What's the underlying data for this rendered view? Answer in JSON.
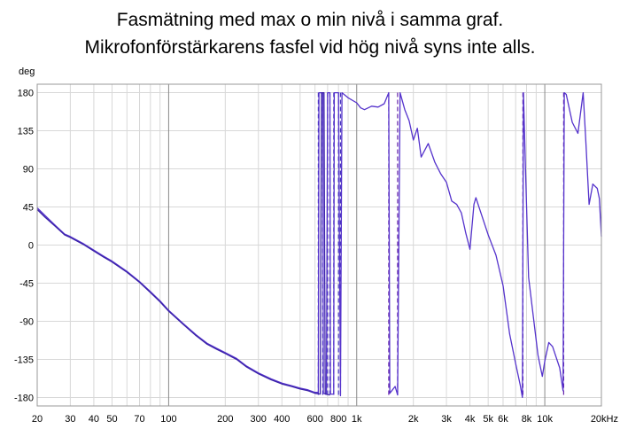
{
  "titles": [
    "Fasmätning med max o min nivå i samma graf.",
    "Mikrofonförstärkarens fasfel vid hög nivå syns inte alls."
  ],
  "chart_data": {
    "type": "line",
    "title": "Fasmätning med max o min nivå i samma graf.",
    "subtitle": "Mikrofonförstärkarens fasfel vid hög nivå syns inte alls.",
    "ylabel": "deg",
    "xlabel": "",
    "x_scale": "log",
    "xlim": [
      20,
      20000
    ],
    "ylim": [
      -190,
      190
    ],
    "grid": true,
    "yticks": [
      180,
      135,
      90,
      45,
      0,
      -45,
      -90,
      -135,
      -180
    ],
    "ytick_labels": [
      "180",
      "135",
      "90",
      "45",
      "0",
      "-45",
      "-90",
      "-135",
      "-180"
    ],
    "xticks": [
      20,
      30,
      40,
      50,
      70,
      100,
      200,
      300,
      400,
      600,
      800,
      1000,
      2000,
      3000,
      4000,
      5000,
      6000,
      8000,
      10000,
      20000
    ],
    "xtick_labels": [
      "20",
      "30",
      "40",
      "50",
      "70",
      "100",
      "200",
      "300",
      "400",
      "600",
      "800",
      "1k",
      "2k",
      "3k",
      "4k",
      "5k",
      "6k",
      "8k",
      "10k",
      "20kHz"
    ],
    "series": [
      {
        "color": "#5533cc",
        "points": [
          [
            20,
            44
          ],
          [
            22,
            35
          ],
          [
            25,
            23
          ],
          [
            28,
            13
          ],
          [
            30,
            10
          ],
          [
            35,
            2
          ],
          [
            40,
            -6
          ],
          [
            45,
            -13
          ],
          [
            50,
            -19
          ],
          [
            60,
            -31
          ],
          [
            70,
            -43
          ],
          [
            80,
            -55
          ],
          [
            90,
            -66
          ],
          [
            100,
            -77
          ],
          [
            120,
            -93
          ],
          [
            140,
            -106
          ],
          [
            160,
            -116
          ],
          [
            180,
            -122
          ],
          [
            200,
            -127
          ],
          [
            230,
            -134
          ],
          [
            260,
            -143
          ],
          [
            300,
            -151
          ],
          [
            350,
            -158
          ],
          [
            400,
            -163
          ],
          [
            450,
            -166
          ],
          [
            500,
            -169
          ],
          [
            550,
            -171
          ],
          [
            600,
            -174
          ],
          [
            625,
            -174
          ],
          [
            630,
            180
          ],
          [
            660,
            180
          ],
          [
            665,
            -175
          ],
          [
            690,
            -176
          ],
          [
            700,
            180
          ],
          [
            720,
            180
          ],
          [
            725,
            -176
          ],
          [
            755,
            -176
          ],
          [
            760,
            180
          ],
          [
            790,
            180
          ],
          [
            800,
            180
          ],
          [
            820,
            -178
          ],
          [
            835,
            180
          ],
          [
            900,
            174
          ],
          [
            1000,
            168
          ],
          [
            1050,
            162
          ],
          [
            1100,
            160
          ],
          [
            1200,
            164
          ],
          [
            1300,
            163
          ],
          [
            1400,
            167
          ],
          [
            1480,
            180
          ],
          [
            1500,
            -175
          ],
          [
            1600,
            -167
          ],
          [
            1650,
            -177
          ],
          [
            1700,
            180
          ],
          [
            1800,
            160
          ],
          [
            1900,
            147
          ],
          [
            2000,
            124
          ],
          [
            2100,
            138
          ],
          [
            2200,
            104
          ],
          [
            2400,
            120
          ],
          [
            2600,
            98
          ],
          [
            2800,
            84
          ],
          [
            3000,
            74
          ],
          [
            3200,
            52
          ],
          [
            3400,
            48
          ],
          [
            3600,
            38
          ],
          [
            3800,
            14
          ],
          [
            4000,
            -5
          ],
          [
            4200,
            48
          ],
          [
            4300,
            56
          ],
          [
            4500,
            43
          ],
          [
            5000,
            12
          ],
          [
            5500,
            -12
          ],
          [
            6000,
            -48
          ],
          [
            6500,
            -105
          ],
          [
            7000,
            -140
          ],
          [
            7400,
            -165
          ],
          [
            7600,
            -180
          ],
          [
            7700,
            180
          ],
          [
            7900,
            90
          ],
          [
            8200,
            -38
          ],
          [
            8700,
            -85
          ],
          [
            9200,
            -130
          ],
          [
            9700,
            -155
          ],
          [
            10000,
            -137
          ],
          [
            10500,
            -115
          ],
          [
            11000,
            -120
          ],
          [
            12000,
            -145
          ],
          [
            12500,
            -172
          ],
          [
            12700,
            180
          ],
          [
            13000,
            178
          ],
          [
            14000,
            145
          ],
          [
            15000,
            132
          ],
          [
            16000,
            180
          ],
          [
            16500,
            125
          ],
          [
            17200,
            48
          ],
          [
            18000,
            72
          ],
          [
            19000,
            67
          ],
          [
            19500,
            55
          ],
          [
            20000,
            10
          ]
        ]
      },
      {
        "color": "#3a22a8",
        "points": [
          [
            20,
            42
          ],
          [
            22,
            33
          ],
          [
            25,
            22
          ],
          [
            28,
            12
          ],
          [
            30,
            9
          ],
          [
            35,
            1
          ],
          [
            40,
            -7
          ],
          [
            45,
            -14
          ],
          [
            50,
            -20
          ],
          [
            60,
            -32
          ],
          [
            70,
            -44
          ],
          [
            80,
            -56
          ],
          [
            90,
            -67
          ],
          [
            100,
            -78
          ],
          [
            120,
            -94
          ],
          [
            140,
            -107
          ],
          [
            160,
            -117
          ],
          [
            180,
            -123
          ],
          [
            200,
            -128
          ],
          [
            230,
            -135
          ],
          [
            260,
            -144
          ],
          [
            300,
            -152
          ],
          [
            350,
            -159
          ],
          [
            400,
            -164
          ],
          [
            450,
            -167
          ],
          [
            500,
            -170
          ],
          [
            550,
            -172
          ],
          [
            600,
            -175
          ],
          [
            640,
            -176
          ],
          [
            650,
            180
          ],
          [
            670,
            180
          ],
          [
            680,
            -176
          ],
          [
            720,
            -177
          ]
        ]
      }
    ],
    "wrap_lines": [
      {
        "x": 625,
        "color": "#4433bb"
      },
      {
        "x": 660,
        "color": "#4433bb"
      },
      {
        "x": 700,
        "color": "#4433bb"
      },
      {
        "x": 720,
        "color": "#4433bb"
      },
      {
        "x": 755,
        "color": "#4433bb"
      },
      {
        "x": 800,
        "color": "#4433bb"
      },
      {
        "x": 820,
        "color": "#4433bb"
      },
      {
        "x": 1480,
        "color": "#6622aa"
      },
      {
        "x": 1650,
        "color": "#6622aa"
      },
      {
        "x": 7650,
        "color": "#6622aa"
      },
      {
        "x": 12600,
        "color": "#6622aa"
      }
    ]
  }
}
